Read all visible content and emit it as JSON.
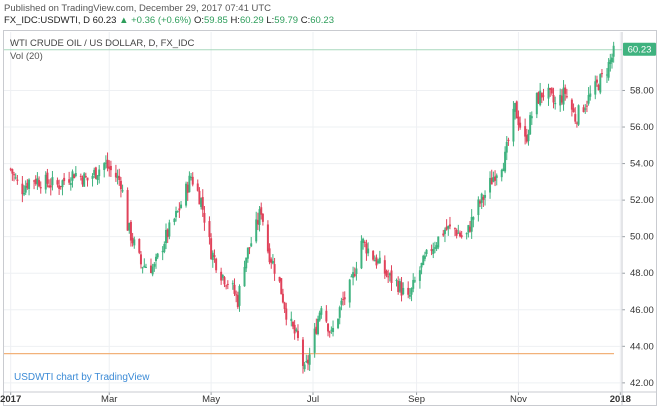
{
  "header": {
    "published": "Published on TradingView.com, December 29, 2017 07:41 UTC",
    "symbol": "FX_IDC:USDWTI, D",
    "last": "60.23",
    "change": "▲ +0.36 (+0.6%)",
    "open_label": "O:",
    "open": "59.85",
    "high_label": "H:",
    "high": "60.29",
    "low_label": "L:",
    "low": "59.79",
    "close_label": "C:",
    "close": "60.23"
  },
  "legend": {
    "title": "WTI CRUDE OIL / US DOLLAR, D, FX_IDC",
    "volume": "Vol (20)"
  },
  "watermark": "USDWTI chart by TradingView",
  "colors": {
    "up": "#3fb27f",
    "down": "#e0425a",
    "grid": "#eef0f3",
    "last_price_line": "#a8d9bd",
    "last_price_badge": "#3fb27f",
    "support_line": "#f2b27a",
    "axis_text": "#333333"
  },
  "chart_data": {
    "type": "candlestick",
    "title": "WTI CRUDE OIL / US DOLLAR, D, FX_IDC",
    "y_ticks": [
      "42.00",
      "44.00",
      "46.00",
      "48.00",
      "50.00",
      "52.00",
      "54.00",
      "56.00",
      "58.00"
    ],
    "ylim": [
      41.5,
      61.2
    ],
    "x_ticks": [
      {
        "label": "2017",
        "day": 0
      },
      {
        "label": "Mar",
        "day": 59
      },
      {
        "label": "May",
        "day": 120
      },
      {
        "label": "Jul",
        "day": 181
      },
      {
        "label": "Sep",
        "day": 243
      },
      {
        "label": "Nov",
        "day": 304
      },
      {
        "label": "2018",
        "day": 365
      }
    ],
    "x_range_days": [
      -4,
      366
    ],
    "last_price": 60.23,
    "last_price_label": "60.23",
    "horizontal_line": 43.6,
    "grid": true,
    "close_anchors": [
      [
        0,
        53.7
      ],
      [
        6,
        52.5
      ],
      [
        12,
        53.2
      ],
      [
        20,
        53.0
      ],
      [
        28,
        52.8
      ],
      [
        38,
        53.5
      ],
      [
        46,
        53.1
      ],
      [
        56,
        54.0
      ],
      [
        60,
        53.6
      ],
      [
        66,
        53.0
      ],
      [
        70,
        50.6
      ],
      [
        78,
        48.5
      ],
      [
        86,
        48.3
      ],
      [
        92,
        49.8
      ],
      [
        100,
        51.3
      ],
      [
        108,
        53.3
      ],
      [
        114,
        52.0
      ],
      [
        120,
        49.2
      ],
      [
        126,
        48.0
      ],
      [
        132,
        47.3
      ],
      [
        136,
        46.5
      ],
      [
        140,
        48.7
      ],
      [
        146,
        50.2
      ],
      [
        150,
        51.5
      ],
      [
        154,
        49.3
      ],
      [
        160,
        47.8
      ],
      [
        166,
        45.5
      ],
      [
        172,
        44.3
      ],
      [
        176,
        42.6
      ],
      [
        180,
        43.8
      ],
      [
        186,
        46.4
      ],
      [
        192,
        44.6
      ],
      [
        198,
        46.3
      ],
      [
        204,
        47.4
      ],
      [
        210,
        49.8
      ],
      [
        218,
        48.8
      ],
      [
        226,
        47.8
      ],
      [
        232,
        47.4
      ],
      [
        238,
        46.5
      ],
      [
        244,
        48.0
      ],
      [
        252,
        49.4
      ],
      [
        260,
        50.4
      ],
      [
        266,
        50.4
      ],
      [
        272,
        49.8
      ],
      [
        278,
        51.4
      ],
      [
        284,
        52.3
      ],
      [
        290,
        53.5
      ],
      [
        296,
        54.3
      ],
      [
        302,
        57.0
      ],
      [
        308,
        55.2
      ],
      [
        314,
        57.4
      ],
      [
        320,
        58.0
      ],
      [
        326,
        57.2
      ],
      [
        332,
        57.9
      ],
      [
        338,
        56.5
      ],
      [
        344,
        57.3
      ],
      [
        350,
        58.1
      ],
      [
        356,
        59.0
      ],
      [
        362,
        60.23
      ]
    ]
  }
}
